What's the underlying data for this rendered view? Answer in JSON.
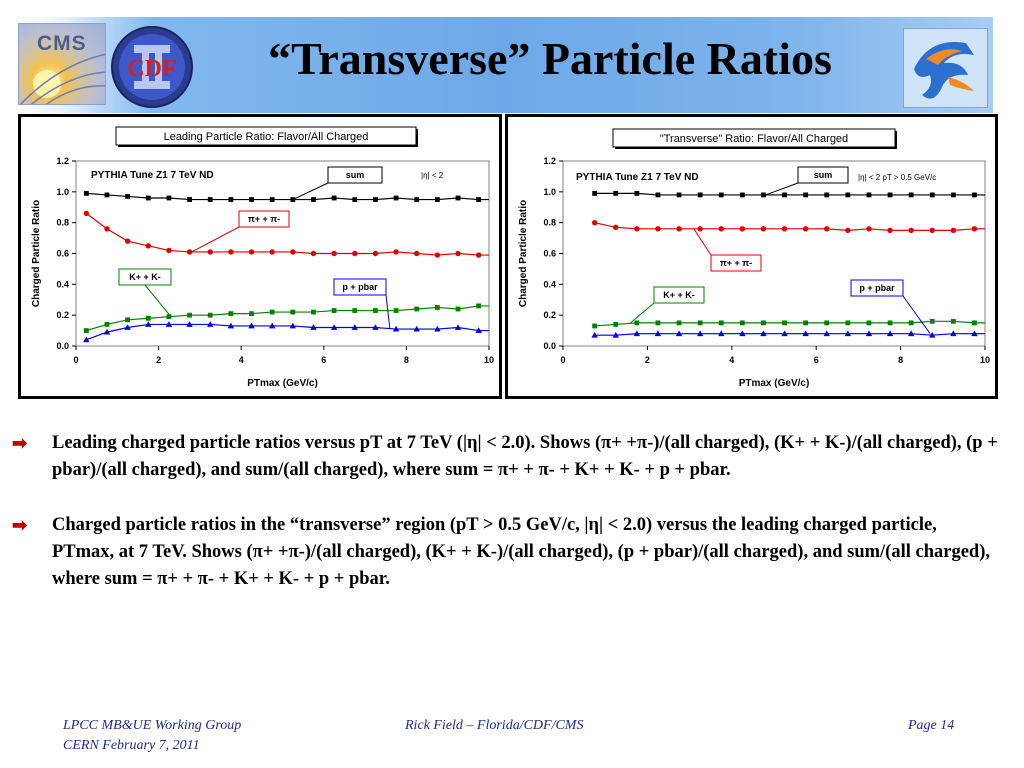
{
  "slide_title": "“Transverse” Particle Ratios",
  "logos": {
    "cms_text": "CMS",
    "cdf_text": "CDF"
  },
  "bullets": [
    "Leading charged particle ratios versus pT at 7 TeV (|η| < 2.0). Shows (π+ +π-)/(all charged), (K+ + K-)/(all charged), (p + pbar)/(all charged), and sum/(all charged), where sum = π+ + π- + K+ + K- + p + pbar.",
    "Charged particle ratios in the “transverse” region  (pT > 0.5 GeV/c, |η| < 2.0) versus the leading charged particle, PTmax,  at 7 TeV. Shows (π+ +π-)/(all charged), (K+ + K-)/(all charged), (p + pbar)/(all charged), and sum/(all charged), where sum = π+ + π- + K+ + K- + p + pbar."
  ],
  "footer": {
    "left_line1": "LPCC MB&UE Working Group",
    "left_line2": "CERN February 7, 2011",
    "center": "Rick Field – Florida/CDF/CMS",
    "right": "Page 14"
  },
  "colors": {
    "sum": "#000000",
    "pi": "#e00000",
    "k": "#008000",
    "p": "#0000e0"
  },
  "chart_data": [
    {
      "type": "line",
      "title": "Leading Particle Ratio: Flavor/All Charged",
      "xlabel": "PTmax (GeV/c)",
      "ylabel": "Charged Particle Ratio",
      "xlim": [
        0,
        10
      ],
      "ylim": [
        0,
        1.2
      ],
      "xticks": [
        0,
        2,
        4,
        6,
        8,
        10
      ],
      "yticks": [
        "0.0",
        "0.2",
        "0.4",
        "0.6",
        "0.8",
        "1.0",
        "1.2"
      ],
      "annotation_tune": "PYTHIA Tune Z1 7 TeV ND",
      "annotation_cut": "|η| < 2",
      "x": [
        0.25,
        0.75,
        1.25,
        1.75,
        2.25,
        2.75,
        3.25,
        3.75,
        4.25,
        4.75,
        5.25,
        5.75,
        6.25,
        6.75,
        7.25,
        7.75,
        8.25,
        8.75,
        9.25,
        9.75
      ],
      "series": [
        {
          "name": "sum",
          "marker": "square",
          "color": "#000000",
          "values": [
            0.99,
            0.98,
            0.97,
            0.96,
            0.96,
            0.95,
            0.95,
            0.95,
            0.95,
            0.95,
            0.95,
            0.95,
            0.96,
            0.95,
            0.95,
            0.96,
            0.95,
            0.95,
            0.96,
            0.95
          ]
        },
        {
          "name": "π+ + π-",
          "marker": "circle",
          "color": "#e00000",
          "values": [
            0.86,
            0.76,
            0.68,
            0.65,
            0.62,
            0.61,
            0.61,
            0.61,
            0.61,
            0.61,
            0.61,
            0.6,
            0.6,
            0.6,
            0.6,
            0.61,
            0.6,
            0.59,
            0.6,
            0.59
          ]
        },
        {
          "name": "K+ + K-",
          "marker": "square",
          "color": "#008000",
          "values": [
            0.1,
            0.14,
            0.17,
            0.18,
            0.19,
            0.2,
            0.2,
            0.21,
            0.21,
            0.22,
            0.22,
            0.22,
            0.23,
            0.23,
            0.23,
            0.23,
            0.24,
            0.25,
            0.24,
            0.26
          ]
        },
        {
          "name": "p + pbar",
          "marker": "triangle",
          "color": "#0000e0",
          "values": [
            0.04,
            0.09,
            0.12,
            0.14,
            0.14,
            0.14,
            0.14,
            0.13,
            0.13,
            0.13,
            0.13,
            0.12,
            0.12,
            0.12,
            0.12,
            0.11,
            0.11,
            0.11,
            0.12,
            0.1
          ]
        }
      ],
      "callouts": [
        "sum",
        "π+ + π-",
        "K+ + K-",
        "p + pbar"
      ]
    },
    {
      "type": "line",
      "title": "\"Transverse\" Ratio: Flavor/All Charged",
      "xlabel": "PTmax (GeV/c)",
      "ylabel": "Charged Particle Ratio",
      "xlim": [
        0,
        10
      ],
      "ylim": [
        0,
        1.2
      ],
      "xticks": [
        0,
        2,
        4,
        6,
        8,
        10
      ],
      "yticks": [
        "0.0",
        "0.2",
        "0.4",
        "0.6",
        "0.8",
        "1.0",
        "1.2"
      ],
      "annotation_tune": "PYTHIA Tune Z1 7 TeV ND",
      "annotation_cut": "|η| < 2 pT > 0.5 GeV/c",
      "x": [
        0.75,
        1.25,
        1.75,
        2.25,
        2.75,
        3.25,
        3.75,
        4.25,
        4.75,
        5.25,
        5.75,
        6.25,
        6.75,
        7.25,
        7.75,
        8.25,
        8.75,
        9.25,
        9.75
      ],
      "series": [
        {
          "name": "sum",
          "marker": "square",
          "color": "#000000",
          "values": [
            0.99,
            0.99,
            0.99,
            0.98,
            0.98,
            0.98,
            0.98,
            0.98,
            0.98,
            0.98,
            0.98,
            0.98,
            0.98,
            0.98,
            0.98,
            0.98,
            0.98,
            0.98,
            0.98
          ]
        },
        {
          "name": "π+ + π-",
          "marker": "circle",
          "color": "#e00000",
          "values": [
            0.8,
            0.77,
            0.76,
            0.76,
            0.76,
            0.76,
            0.76,
            0.76,
            0.76,
            0.76,
            0.76,
            0.76,
            0.75,
            0.76,
            0.75,
            0.75,
            0.75,
            0.75,
            0.76
          ]
        },
        {
          "name": "K+ + K-",
          "marker": "square",
          "color": "#008000",
          "values": [
            0.13,
            0.14,
            0.15,
            0.15,
            0.15,
            0.15,
            0.15,
            0.15,
            0.15,
            0.15,
            0.15,
            0.15,
            0.15,
            0.15,
            0.15,
            0.15,
            0.16,
            0.16,
            0.15
          ]
        },
        {
          "name": "p + pbar",
          "marker": "triangle",
          "color": "#0000e0",
          "values": [
            0.07,
            0.07,
            0.08,
            0.08,
            0.08,
            0.08,
            0.08,
            0.08,
            0.08,
            0.08,
            0.08,
            0.08,
            0.08,
            0.08,
            0.08,
            0.08,
            0.07,
            0.08,
            0.08
          ]
        }
      ],
      "callouts": [
        "sum",
        "π+ + π-",
        "K+ + K-",
        "p + pbar"
      ]
    }
  ]
}
